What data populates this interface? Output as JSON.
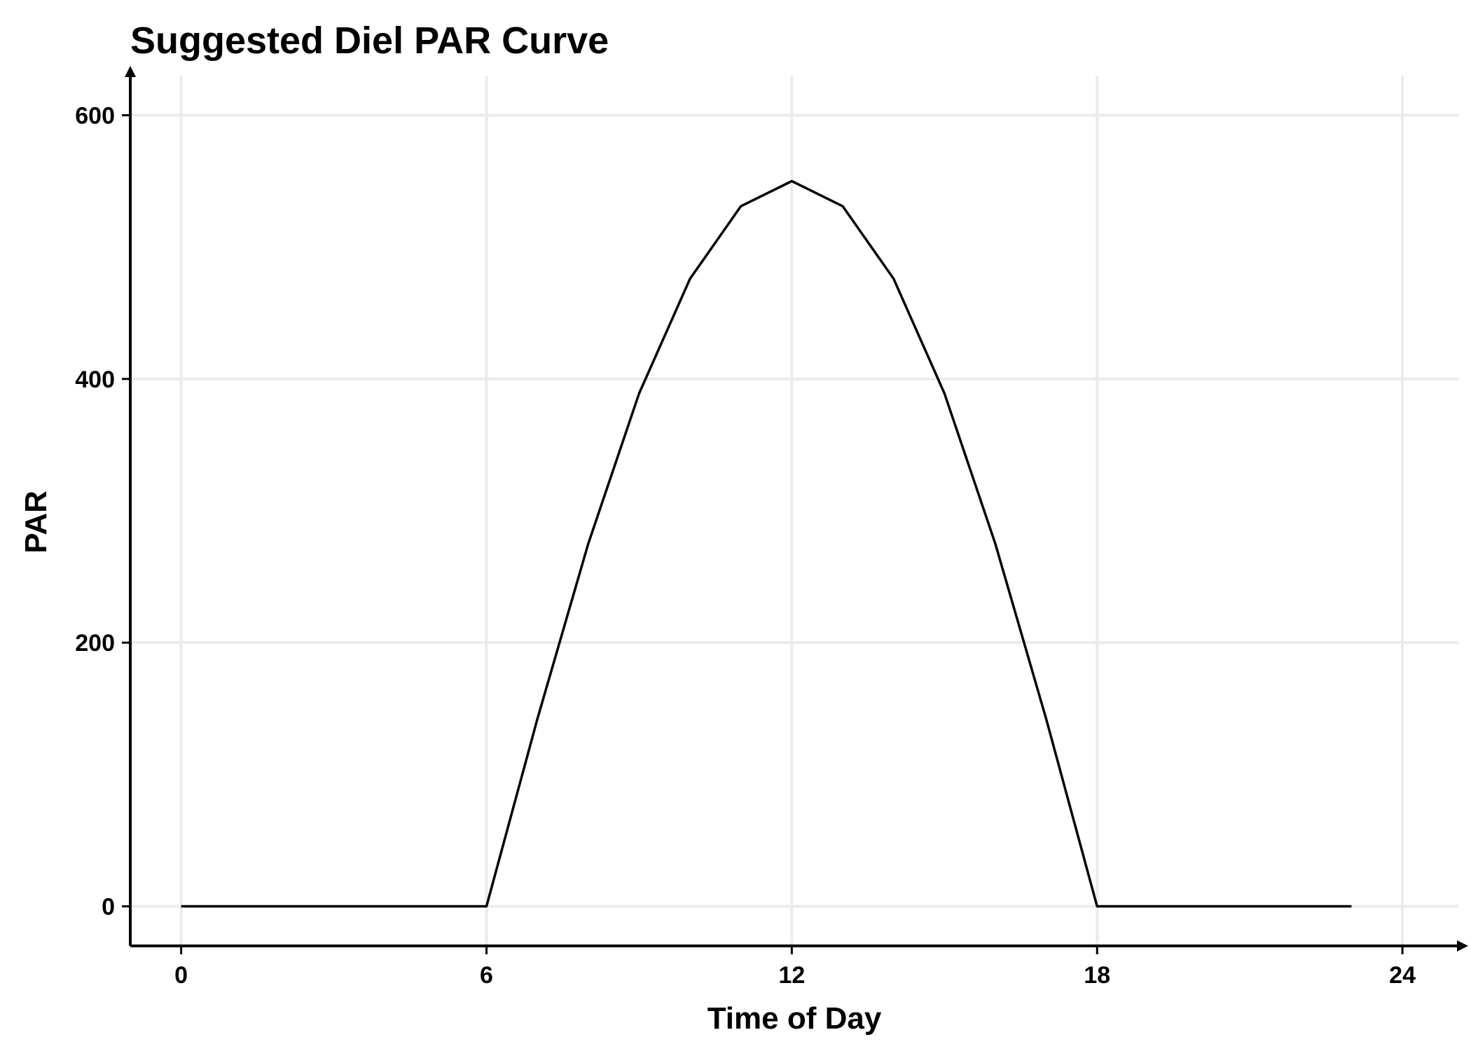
{
  "chart_data": {
    "type": "line",
    "title": "Suggested Diel PAR Curve",
    "xlabel": "Time of Day",
    "ylabel": "PAR",
    "xlim": [
      -1,
      25.1
    ],
    "ylim": [
      -30,
      630
    ],
    "x_ticks": [
      0,
      6,
      12,
      18,
      24
    ],
    "x_tick_labels": [
      "0",
      "6",
      "12",
      "18",
      "24"
    ],
    "y_ticks": [
      0,
      200,
      400,
      600
    ],
    "y_tick_labels": [
      "0",
      "200",
      "400",
      "600"
    ],
    "grid": true,
    "legend": "none",
    "series": [
      {
        "color": "#000000",
        "x": [
          0,
          1,
          2,
          3,
          4,
          5,
          6,
          7,
          8,
          9,
          10,
          11,
          12,
          13,
          14,
          15,
          16,
          17,
          18,
          19,
          20,
          21,
          22,
          23
        ],
        "y": [
          0,
          0,
          0,
          0,
          0,
          0,
          0,
          142,
          275,
          389,
          476,
          531,
          550,
          531,
          476,
          389,
          275,
          142,
          0,
          0,
          0,
          0,
          0,
          0
        ]
      }
    ]
  }
}
